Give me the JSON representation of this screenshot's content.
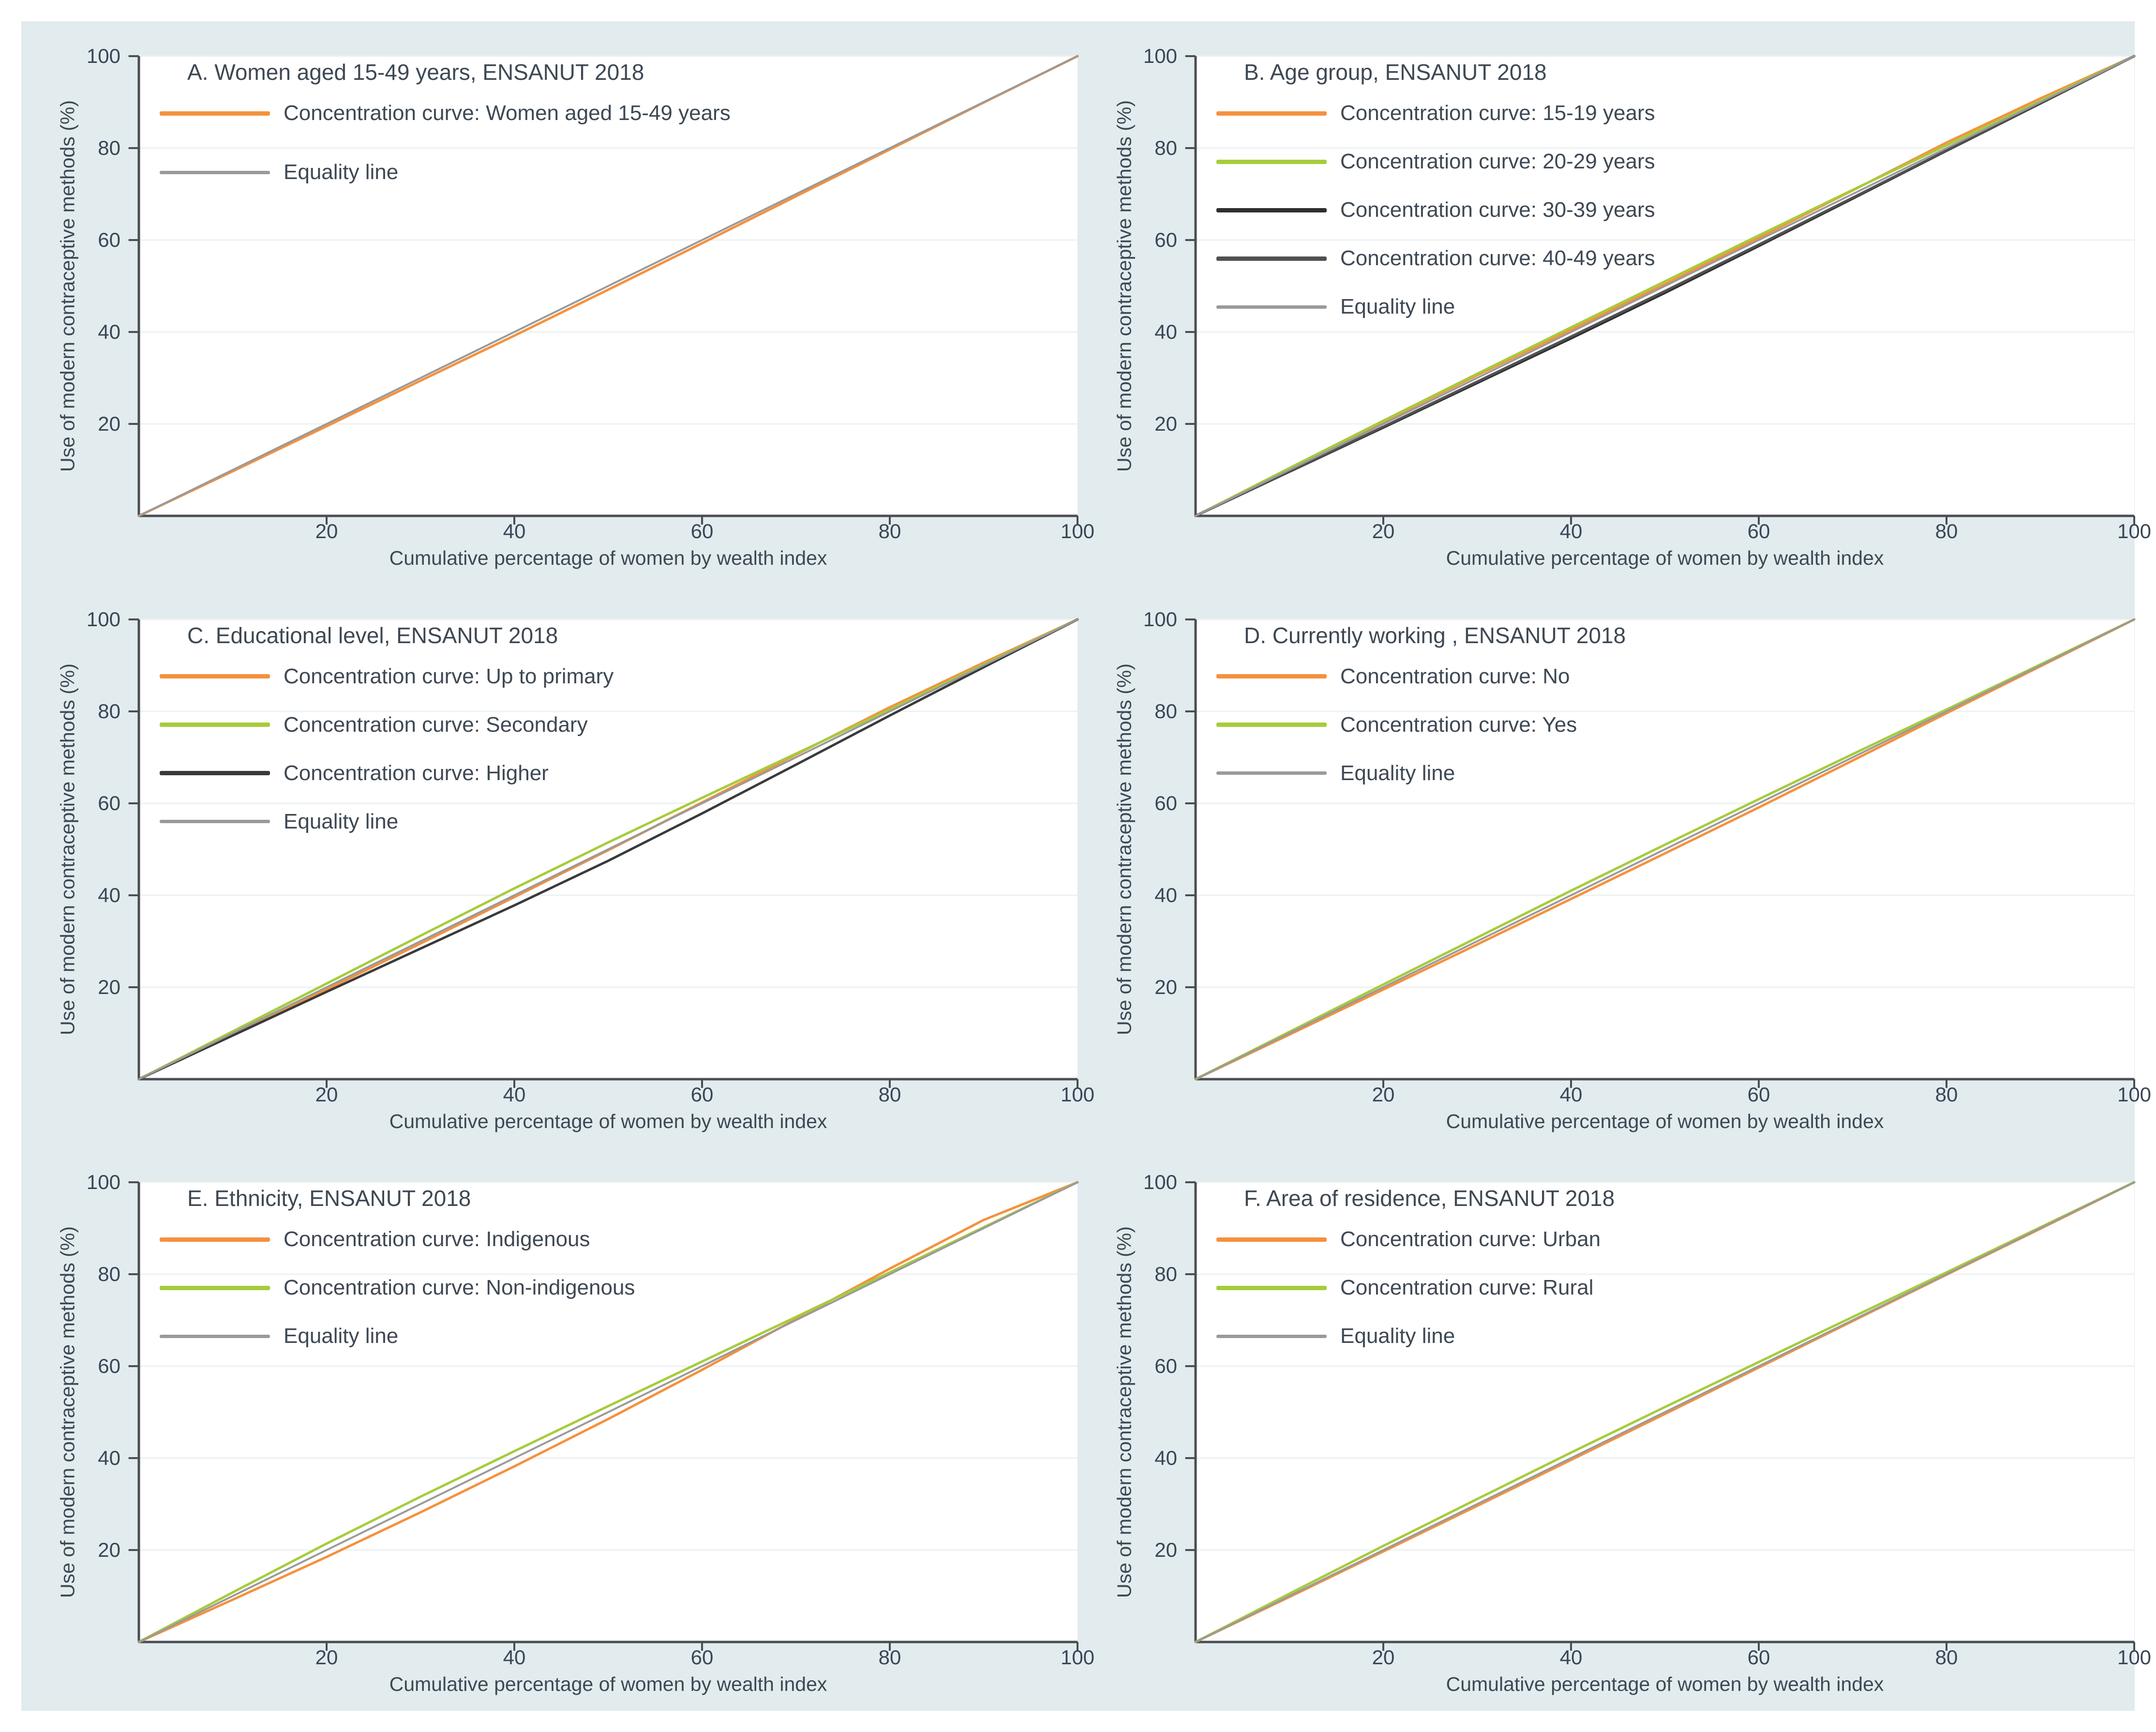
{
  "figure": {
    "canvas_bg": "#e2ebee",
    "plot_bg": "#ffffff",
    "x_axis_label": "Cumulative percentage of women by wealth index",
    "y_axis_label": "Use of modern contraceptive methods (%)",
    "x_ticks": [
      20,
      40,
      60,
      80,
      100
    ],
    "y_ticks": [
      20,
      40,
      60,
      80,
      100
    ],
    "axis_color": "#4a4e52",
    "grid_color": "#edf2f2",
    "text_color": "#3e4853"
  },
  "chart_data": [
    {
      "type": "line",
      "panel_label": "A",
      "title": "A. Women aged 15-49 years, ENSANUT 2018",
      "xlabel": "Cumulative percentage of women by wealth index",
      "ylabel": "Use of modern contraceptive methods (%)",
      "xlim": [
        0,
        100
      ],
      "ylim": [
        0,
        100
      ],
      "grid": "horizontal",
      "legend_loc": "upper left inside",
      "x": [
        0,
        10,
        20,
        30,
        40,
        50,
        60,
        70,
        80,
        90,
        100
      ],
      "series": [
        {
          "name": "Concentration curve: Women aged 15-49 years",
          "color": "#F5913E",
          "y": [
            0,
            9.7,
            19.5,
            29.4,
            39.2,
            49.2,
            59.3,
            69.5,
            79.7,
            89.9,
            100
          ]
        },
        {
          "name": "Equality line",
          "color": "#9A9A9A",
          "y": [
            0,
            10,
            20,
            30,
            40,
            50,
            60,
            70,
            80,
            90,
            100
          ]
        }
      ]
    },
    {
      "type": "line",
      "panel_label": "B",
      "title": "B. Age group, ENSANUT 2018",
      "xlabel": "Cumulative percentage of women by wealth index",
      "ylabel": "Use of modern contraceptive methods (%)",
      "xlim": [
        0,
        100
      ],
      "ylim": [
        0,
        100
      ],
      "grid": "horizontal",
      "legend_loc": "upper left inside",
      "x": [
        0,
        10,
        20,
        30,
        40,
        50,
        60,
        70,
        80,
        90,
        100
      ],
      "series": [
        {
          "name": "Concentration curve: 15-19 years",
          "color": "#F5913E",
          "y": [
            0,
            10.3,
            20.5,
            30.6,
            40.5,
            50.4,
            60.5,
            70.8,
            81.2,
            90.8,
            100
          ]
        },
        {
          "name": "Concentration curve: 20-29 years",
          "color": "#A6CC3C",
          "y": [
            0,
            10.4,
            20.7,
            30.9,
            41,
            51,
            61,
            70.9,
            80.6,
            90.3,
            100
          ]
        },
        {
          "name": "Concentration curve: 30-39 years",
          "color": "#2F2F2F",
          "y": [
            0,
            9.6,
            19.2,
            28.9,
            38.6,
            48.5,
            58.7,
            69,
            79.4,
            89.7,
            100
          ]
        },
        {
          "name": "Concentration curve: 40-49 years",
          "color": "#515151",
          "y": [
            0,
            9.7,
            19.4,
            29.2,
            39,
            48.9,
            59,
            69.2,
            79.5,
            89.8,
            100
          ]
        },
        {
          "name": "Equality line",
          "color": "#9A9A9A",
          "y": [
            0,
            10,
            20,
            30,
            40,
            50,
            60,
            70,
            80,
            90,
            100
          ]
        }
      ]
    },
    {
      "type": "line",
      "panel_label": "C",
      "title": "C. Educational level, ENSANUT 2018",
      "xlabel": "Cumulative percentage of women by wealth index",
      "ylabel": "Use of modern contraceptive methods (%)",
      "xlim": [
        0,
        100
      ],
      "ylim": [
        0,
        100
      ],
      "grid": "horizontal",
      "legend_loc": "upper left inside",
      "x": [
        0,
        10,
        20,
        30,
        40,
        50,
        60,
        70,
        80,
        90,
        100
      ],
      "series": [
        {
          "name": "Concentration curve: Up to primary",
          "color": "#F5913E",
          "y": [
            0,
            9.7,
            19.5,
            29.5,
            39.6,
            49.8,
            60.2,
            70.6,
            80.9,
            90.6,
            100
          ]
        },
        {
          "name": "Concentration curve: Secondary",
          "color": "#A6CC3C",
          "y": [
            0,
            10.4,
            20.8,
            31.2,
            41.5,
            51.5,
            61.2,
            70.8,
            80.4,
            90.2,
            100
          ]
        },
        {
          "name": "Concentration curve: Higher",
          "color": "#3A3A3A",
          "y": [
            0,
            9.5,
            19,
            28.4,
            37.8,
            47.5,
            57.8,
            68.4,
            79.1,
            89.6,
            100
          ]
        },
        {
          "name": "Equality line",
          "color": "#9A9A9A",
          "y": [
            0,
            10,
            20,
            30,
            40,
            50,
            60,
            70,
            80,
            90,
            100
          ]
        }
      ]
    },
    {
      "type": "line",
      "panel_label": "D",
      "title": "D. Currently working , ENSANUT 2018",
      "xlabel": "Cumulative percentage of women by wealth index",
      "ylabel": "Use of modern contraceptive methods (%)",
      "xlim": [
        0,
        100
      ],
      "ylim": [
        0,
        100
      ],
      "grid": "horizontal",
      "legend_loc": "upper left inside",
      "x": [
        0,
        10,
        20,
        30,
        40,
        50,
        60,
        70,
        80,
        90,
        100
      ],
      "series": [
        {
          "name": "Concentration curve: No",
          "color": "#F5913E",
          "y": [
            0,
            9.7,
            19.5,
            29.3,
            39.2,
            49.1,
            59.1,
            69.3,
            79.6,
            89.8,
            100
          ]
        },
        {
          "name": "Concentration curve: Yes",
          "color": "#A6CC3C",
          "y": [
            0,
            10.3,
            20.6,
            30.8,
            41,
            51,
            60.9,
            70.7,
            80.4,
            90.2,
            100
          ]
        },
        {
          "name": "Equality line",
          "color": "#9A9A9A",
          "y": [
            0,
            10,
            20,
            30,
            40,
            50,
            60,
            70,
            80,
            90,
            100
          ]
        }
      ]
    },
    {
      "type": "line",
      "panel_label": "E",
      "title": "E. Ethnicity, ENSANUT 2018",
      "xlabel": "Cumulative percentage of women by wealth index",
      "ylabel": "Use of modern contraceptive methods (%)",
      "xlim": [
        0,
        100
      ],
      "ylim": [
        0,
        100
      ],
      "grid": "horizontal",
      "legend_loc": "upper left inside",
      "x": [
        0,
        10,
        20,
        30,
        40,
        50,
        60,
        70,
        80,
        90,
        100
      ],
      "series": [
        {
          "name": "Concentration curve: Indigenous",
          "color": "#F5913E",
          "y": [
            0,
            9.2,
            18.5,
            28.2,
            38.2,
            48.5,
            59.2,
            70.2,
            81.2,
            91.8,
            100
          ]
        },
        {
          "name": "Concentration curve: Non-indigenous",
          "color": "#A6CC3C",
          "y": [
            0,
            10.8,
            21.4,
            31.6,
            41.5,
            51.3,
            61,
            70.7,
            80.4,
            90.2,
            100
          ]
        },
        {
          "name": "Equality line",
          "color": "#9A9A9A",
          "y": [
            0,
            10,
            20,
            30,
            40,
            50,
            60,
            70,
            80,
            90,
            100
          ]
        }
      ]
    },
    {
      "type": "line",
      "panel_label": "F",
      "title": "F. Area of residence, ENSANUT 2018",
      "xlabel": "Cumulative percentage of women by wealth index",
      "ylabel": "Use of modern contraceptive methods (%)",
      "xlim": [
        0,
        100
      ],
      "ylim": [
        0,
        100
      ],
      "grid": "horizontal",
      "legend_loc": "upper left inside",
      "x": [
        0,
        10,
        20,
        30,
        40,
        50,
        60,
        70,
        80,
        90,
        100
      ],
      "series": [
        {
          "name": "Concentration curve: Urban",
          "color": "#F5913E",
          "y": [
            0,
            9.8,
            19.7,
            29.6,
            39.6,
            49.6,
            59.7,
            69.8,
            79.9,
            89.9,
            100
          ]
        },
        {
          "name": "Concentration curve: Rural",
          "color": "#A6CC3C",
          "y": [
            0,
            10.5,
            20.9,
            31.1,
            41.2,
            51.1,
            60.9,
            70.7,
            80.4,
            90.2,
            100
          ]
        },
        {
          "name": "Equality line",
          "color": "#9A9A9A",
          "y": [
            0,
            10,
            20,
            30,
            40,
            50,
            60,
            70,
            80,
            90,
            100
          ]
        }
      ]
    }
  ]
}
